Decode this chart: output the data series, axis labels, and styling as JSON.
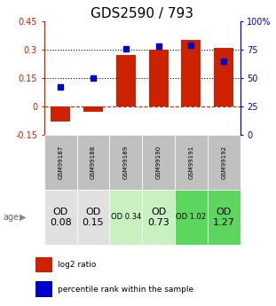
{
  "title": "GDS2590 / 793",
  "samples": [
    "GSM99187",
    "GSM99188",
    "GSM99189",
    "GSM99190",
    "GSM99191",
    "GSM99192"
  ],
  "log2_ratio": [
    -0.08,
    -0.03,
    0.27,
    0.3,
    0.35,
    0.31
  ],
  "percentile_rank": [
    42,
    50,
    76,
    78,
    79,
    65
  ],
  "od_labels": [
    "OD\n0.08",
    "OD\n0.15",
    "OD 0.34",
    "OD\n0.73",
    "OD 1.02",
    "OD\n1.27"
  ],
  "od_fontsize": [
    8,
    8,
    6,
    8,
    6,
    8
  ],
  "od_colors": [
    "#e0e0e0",
    "#e0e0e0",
    "#c8f0c0",
    "#c8f0c0",
    "#5cd65c",
    "#5cd65c"
  ],
  "bar_color": "#cc2200",
  "dot_color": "#0000cc",
  "left_ylim": [
    -0.15,
    0.45
  ],
  "right_ylim": [
    0,
    100
  ],
  "left_yticks": [
    -0.15,
    0,
    0.15,
    0.3,
    0.45
  ],
  "right_yticks": [
    0,
    25,
    50,
    75,
    100
  ],
  "right_yticklabels": [
    "0",
    "25",
    "50",
    "75",
    "100%"
  ],
  "hlines": [
    0.0,
    0.15,
    0.3
  ],
  "hline_styles": [
    "dashed",
    "dotted",
    "dotted"
  ],
  "hline_colors": [
    "#cc2200",
    "#000000",
    "#000000"
  ],
  "title_fontsize": 11,
  "sample_bg_color": "#c0c0c0",
  "age_label": "age"
}
